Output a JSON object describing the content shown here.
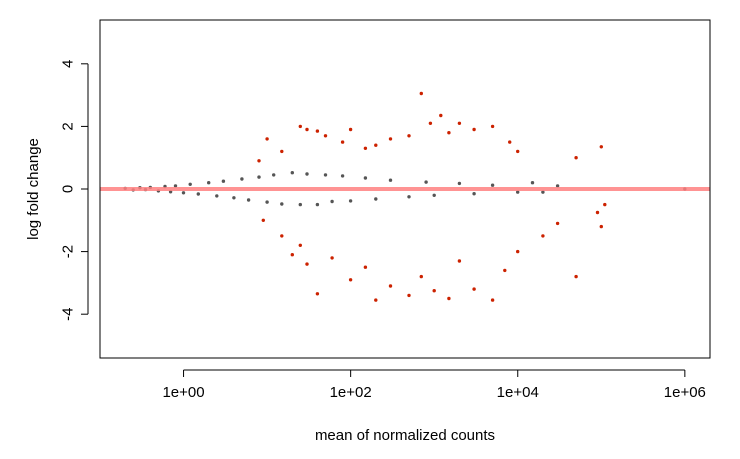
{
  "chart_data": {
    "type": "scatter",
    "title": "",
    "xlabel": "mean of normalized counts",
    "ylabel": "log fold change",
    "x_scale": "log10",
    "x_ticks": [
      1,
      100,
      10000,
      1000000
    ],
    "x_tick_labels": [
      "1e+00",
      "1e+02",
      "1e+04",
      "1e+06"
    ],
    "xlim": [
      0.1,
      2000000
    ],
    "y_ticks": [
      -4,
      -2,
      0,
      2,
      4
    ],
    "y_tick_labels": [
      "-4",
      "-2",
      "0",
      "2",
      "4"
    ],
    "ylim": [
      -5.4,
      5.4
    ],
    "grid": false,
    "legend": "none",
    "reference_line": {
      "y": 0,
      "color": "#ff8080"
    },
    "series": [
      {
        "color": "#555555",
        "points": [
          [
            0.2,
            0.02
          ],
          [
            0.25,
            -0.03
          ],
          [
            0.3,
            0.04
          ],
          [
            0.35,
            -0.02
          ],
          [
            0.4,
            0.05
          ],
          [
            0.5,
            -0.06
          ],
          [
            0.6,
            0.08
          ],
          [
            0.7,
            -0.09
          ],
          [
            0.8,
            0.1
          ],
          [
            1.0,
            -0.12
          ],
          [
            1.2,
            0.15
          ],
          [
            1.5,
            -0.16
          ],
          [
            2,
            0.2
          ],
          [
            2.5,
            -0.22
          ],
          [
            3,
            0.25
          ],
          [
            4,
            -0.28
          ],
          [
            5,
            0.32
          ],
          [
            6,
            -0.35
          ],
          [
            8,
            0.38
          ],
          [
            10,
            -0.42
          ],
          [
            12,
            0.45
          ],
          [
            15,
            -0.48
          ],
          [
            20,
            0.52
          ],
          [
            25,
            -0.5
          ],
          [
            30,
            0.48
          ],
          [
            40,
            -0.5
          ],
          [
            50,
            0.45
          ],
          [
            60,
            -0.4
          ],
          [
            80,
            0.42
          ],
          [
            100,
            -0.38
          ],
          [
            150,
            0.35
          ],
          [
            200,
            -0.32
          ],
          [
            300,
            0.28
          ],
          [
            500,
            -0.25
          ],
          [
            800,
            0.22
          ],
          [
            1000,
            -0.2
          ],
          [
            2000,
            0.18
          ],
          [
            3000,
            -0.15
          ],
          [
            5000,
            0.12
          ],
          [
            10000,
            -0.1
          ],
          [
            15000,
            0.2
          ],
          [
            20000,
            -0.1
          ],
          [
            30000,
            0.1
          ],
          [
            1000000,
            0.0
          ]
        ]
      },
      {
        "color": "#cc2200",
        "points": [
          [
            8,
            0.9
          ],
          [
            10,
            1.6
          ],
          [
            15,
            1.2
          ],
          [
            25,
            2.0
          ],
          [
            30,
            1.9
          ],
          [
            40,
            1.85
          ],
          [
            50,
            1.7
          ],
          [
            80,
            1.5
          ],
          [
            100,
            1.9
          ],
          [
            150,
            1.3
          ],
          [
            200,
            1.4
          ],
          [
            300,
            1.6
          ],
          [
            500,
            1.7
          ],
          [
            700,
            3.05
          ],
          [
            900,
            2.1
          ],
          [
            1200,
            2.35
          ],
          [
            1500,
            1.8
          ],
          [
            2000,
            2.1
          ],
          [
            3000,
            1.9
          ],
          [
            5000,
            2.0
          ],
          [
            8000,
            1.5
          ],
          [
            10000,
            1.2
          ],
          [
            50000,
            1.0
          ],
          [
            100000,
            1.35
          ],
          [
            110000,
            -0.5
          ],
          [
            9,
            -1.0
          ],
          [
            15,
            -1.5
          ],
          [
            20,
            -2.1
          ],
          [
            25,
            -1.8
          ],
          [
            30,
            -2.4
          ],
          [
            40,
            -3.35
          ],
          [
            60,
            -2.2
          ],
          [
            100,
            -2.9
          ],
          [
            150,
            -2.5
          ],
          [
            200,
            -3.55
          ],
          [
            300,
            -3.1
          ],
          [
            500,
            -3.4
          ],
          [
            700,
            -2.8
          ],
          [
            1000,
            -3.25
          ],
          [
            1500,
            -3.5
          ],
          [
            2000,
            -2.3
          ],
          [
            3000,
            -3.2
          ],
          [
            5000,
            -3.55
          ],
          [
            7000,
            -2.6
          ],
          [
            10000,
            -2.0
          ],
          [
            20000,
            -1.5
          ],
          [
            30000,
            -1.1
          ],
          [
            50000,
            -2.8
          ],
          [
            100000,
            -1.2
          ],
          [
            90000,
            -0.75
          ]
        ]
      }
    ]
  }
}
